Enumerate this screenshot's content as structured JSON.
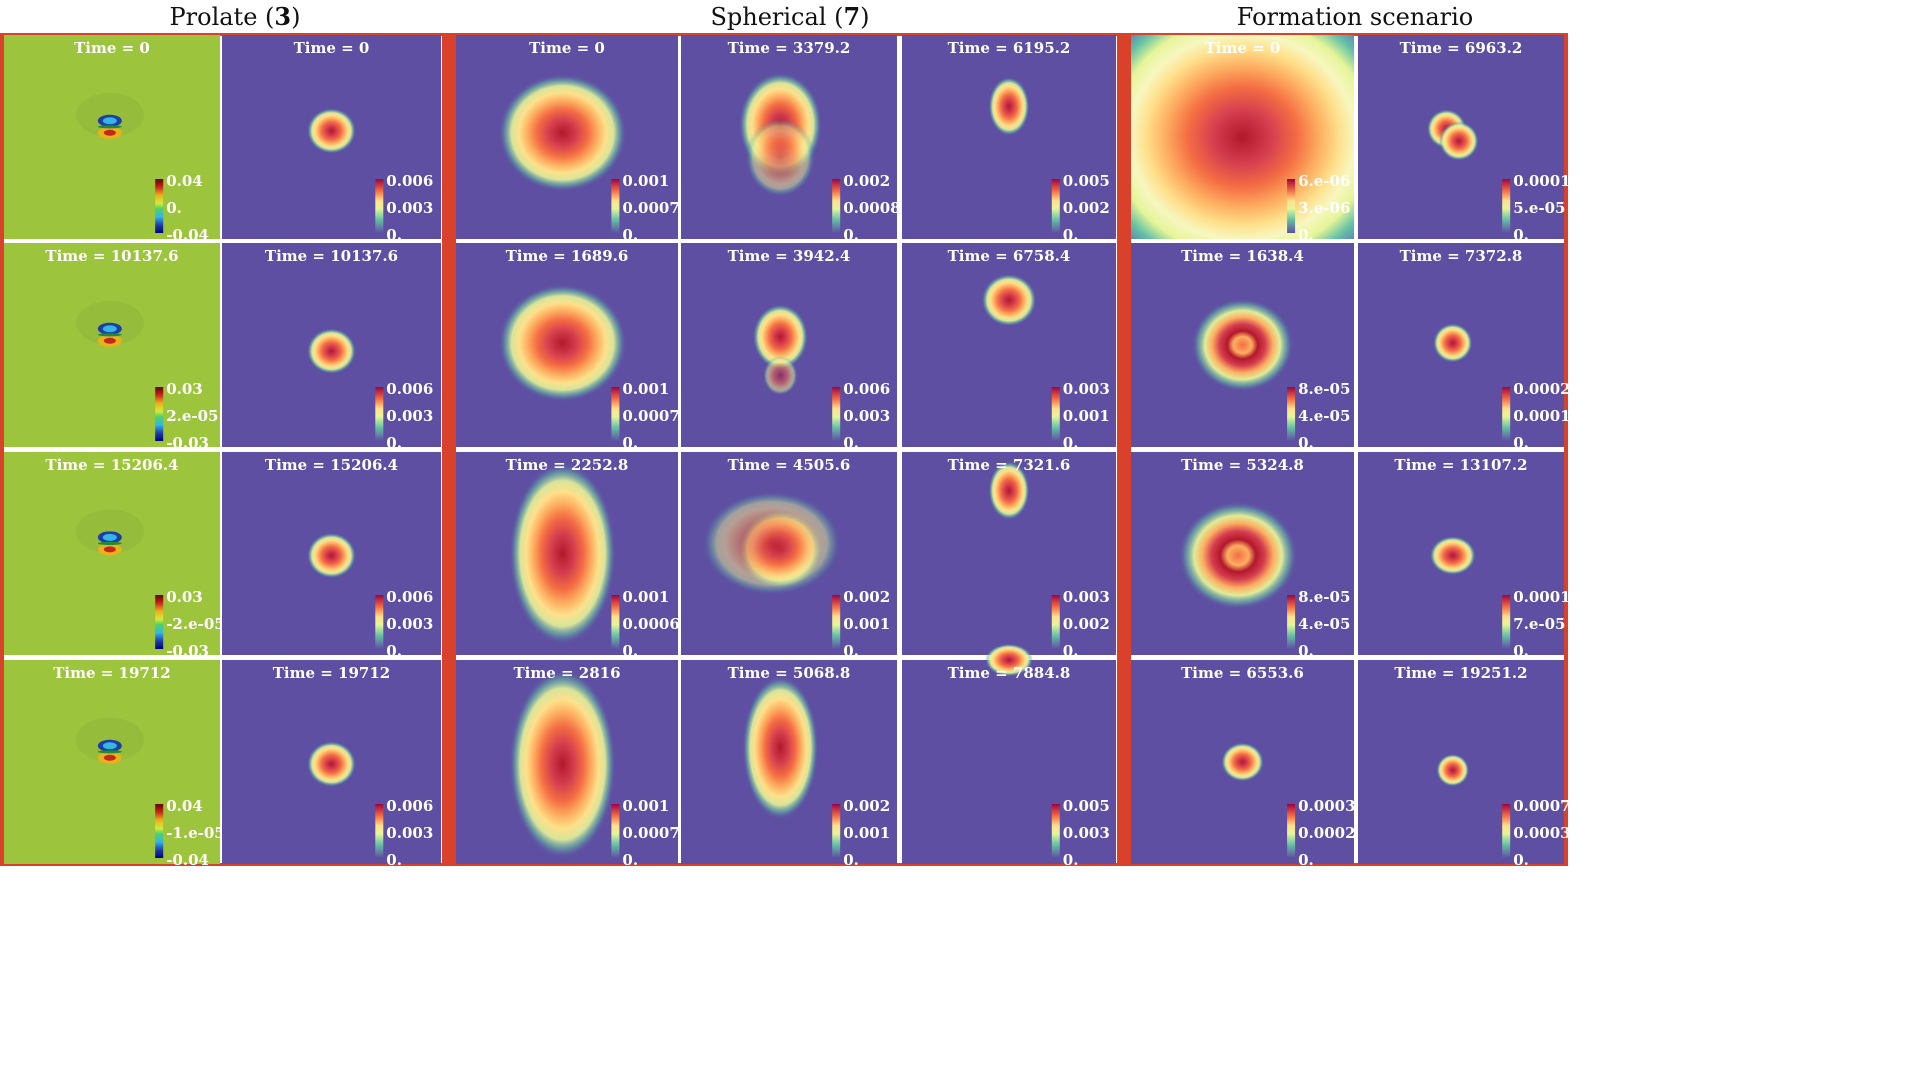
{
  "headers": {
    "prolate_prefix": "Prolate (",
    "prolate_num": "3",
    "prolate_suffix": ")",
    "spherical_prefix": "Spherical (",
    "spherical_num": "7",
    "spherical_suffix": ")",
    "formation": "Formation scenario"
  },
  "colors": {
    "frame": "#d9412a",
    "green_bg": "#9dc43d",
    "purple_bg": "#5e4fa2"
  },
  "rows": [
    [
      {
        "time": "Time = 0",
        "ticks": [
          "0.04",
          "0.",
          "-0.04"
        ],
        "colormap": "jet"
      },
      {
        "time": "Time = 0",
        "ticks": [
          "0.006",
          "0.003",
          "0."
        ],
        "colormap": "spectral"
      },
      {
        "time": "Time = 0",
        "ticks": [
          "0.001",
          "0.0007",
          "0."
        ],
        "colormap": "spectral"
      },
      {
        "time": "Time = 3379.2",
        "ticks": [
          "0.002",
          "0.0008",
          "0."
        ],
        "colormap": "spectral"
      },
      {
        "time": "Time = 6195.2",
        "ticks": [
          "0.005",
          "0.002",
          "0."
        ],
        "colormap": "spectral"
      },
      {
        "time": "Time = 0",
        "ticks": [
          "6.e-06",
          "3.e-06",
          "0."
        ],
        "colormap": "spectral"
      },
      {
        "time": "Time = 6963.2",
        "ticks": [
          "0.0001",
          "5.e-05",
          "0."
        ],
        "colormap": "spectral"
      }
    ],
    [
      {
        "time": "Time = 10137.6",
        "ticks": [
          "0.03",
          "2.e-05",
          "-0.03"
        ],
        "colormap": "jet"
      },
      {
        "time": "Time = 10137.6",
        "ticks": [
          "0.006",
          "0.003",
          "0."
        ],
        "colormap": "spectral"
      },
      {
        "time": "Time = 1689.6",
        "ticks": [
          "0.001",
          "0.0007",
          "0."
        ],
        "colormap": "spectral"
      },
      {
        "time": "Time = 3942.4",
        "ticks": [
          "0.006",
          "0.003",
          "0."
        ],
        "colormap": "spectral"
      },
      {
        "time": "Time = 6758.4",
        "ticks": [
          "0.003",
          "0.001",
          "0."
        ],
        "colormap": "spectral"
      },
      {
        "time": "Time = 1638.4",
        "ticks": [
          "8.e-05",
          "4.e-05",
          "0."
        ],
        "colormap": "spectral"
      },
      {
        "time": "Time = 7372.8",
        "ticks": [
          "0.0002",
          "0.0001",
          "0."
        ],
        "colormap": "spectral"
      }
    ],
    [
      {
        "time": "Time = 15206.4",
        "ticks": [
          "0.03",
          "-2.e-05",
          "-0.03"
        ],
        "colormap": "jet"
      },
      {
        "time": "Time = 15206.4",
        "ticks": [
          "0.006",
          "0.003",
          "0."
        ],
        "colormap": "spectral"
      },
      {
        "time": "Time = 2252.8",
        "ticks": [
          "0.001",
          "0.0006",
          "0."
        ],
        "colormap": "spectral"
      },
      {
        "time": "Time = 4505.6",
        "ticks": [
          "0.002",
          "0.001",
          "0."
        ],
        "colormap": "spectral"
      },
      {
        "time": "Time = 7321.6",
        "ticks": [
          "0.003",
          "0.002",
          "0."
        ],
        "colormap": "spectral"
      },
      {
        "time": "Time = 5324.8",
        "ticks": [
          "8.e-05",
          "4.e-05",
          "0."
        ],
        "colormap": "spectral"
      },
      {
        "time": "Time = 13107.2",
        "ticks": [
          "0.0001",
          "7.e-05",
          "0."
        ],
        "colormap": "spectral"
      }
    ],
    [
      {
        "time": "Time = 19712",
        "ticks": [
          "0.04",
          "-1.e-05",
          "-0.04"
        ],
        "colormap": "jet"
      },
      {
        "time": "Time = 19712",
        "ticks": [
          "0.006",
          "0.003",
          "0."
        ],
        "colormap": "spectral"
      },
      {
        "time": "Time = 2816",
        "ticks": [
          "0.001",
          "0.0007",
          "0."
        ],
        "colormap": "spectral"
      },
      {
        "time": "Time = 5068.8",
        "ticks": [
          "0.002",
          "0.001",
          "0."
        ],
        "colormap": "spectral"
      },
      {
        "time": "Time = 7884.8",
        "ticks": [
          "0.005",
          "0.003",
          "0."
        ],
        "colormap": "spectral"
      },
      {
        "time": "Time = 6553.6",
        "ticks": [
          "0.0003",
          "0.0002",
          "0."
        ],
        "colormap": "spectral"
      },
      {
        "time": "Time = 19251.2",
        "ticks": [
          "0.0007",
          "0.0003",
          "0."
        ],
        "colormap": "spectral"
      }
    ]
  ]
}
